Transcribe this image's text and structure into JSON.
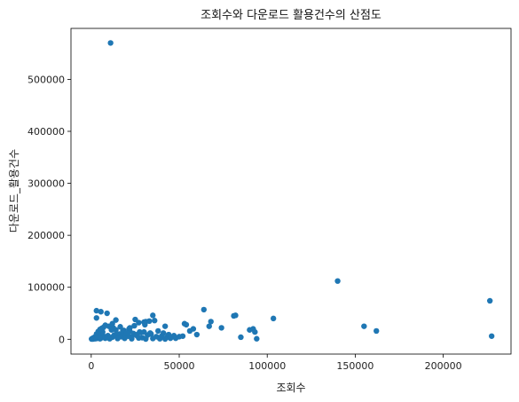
{
  "chart_data": {
    "type": "scatter",
    "title": "조회수와 다운로드 활용건수의 산점도",
    "xlabel": "조회수",
    "ylabel": "다운로드_활용건수",
    "xlim": [
      -11500,
      238500
    ],
    "ylim": [
      -28500,
      598000
    ],
    "xticks": [
      0,
      50000,
      100000,
      150000,
      200000
    ],
    "yticks": [
      0,
      100000,
      200000,
      300000,
      400000,
      500000
    ],
    "grid": false,
    "legend": "none",
    "marker_color": "#1f77b4",
    "series": [
      {
        "x": [
          11000,
          140000,
          226500,
          227500,
          155000,
          162000,
          103500,
          82000,
          81000,
          64000,
          67000,
          68000,
          74000,
          90000,
          92000,
          93000,
          94000,
          85000,
          3000,
          5500,
          9000,
          3000,
          35000,
          14000,
          36000,
          25000,
          27000,
          30000,
          31000,
          33000,
          42000,
          52000,
          53000,
          54000,
          56000,
          58000,
          60000,
          500,
          1000,
          1500,
          2000,
          2500,
          4000,
          6000,
          7000,
          8000,
          9500,
          10500,
          12000,
          13000,
          15000,
          16000,
          17000,
          18000,
          19000,
          20000,
          21000,
          22000,
          23000,
          24000,
          26000,
          28000,
          29000,
          32000,
          34000,
          37000,
          38000,
          39000,
          40000,
          41000,
          43000,
          44000,
          45000,
          47000,
          48000,
          50000,
          200,
          800,
          1200,
          1800,
          3500,
          4500,
          5000,
          6500,
          7500,
          11500,
          12500,
          14500,
          16500,
          18500,
          21500,
          24500,
          27500,
          30500,
          33500,
          3000,
          4000,
          5000,
          6000,
          7000,
          8000,
          10000,
          12000,
          14000,
          18000,
          20000,
          22000,
          26000,
          30000,
          1000,
          2000,
          3000,
          5000,
          8000,
          11000,
          15000,
          19000,
          23000,
          27000,
          31000,
          35000,
          39000,
          42000,
          45000
        ],
        "y": [
          570000,
          112000,
          74000,
          6000,
          25000,
          16000,
          40000,
          46000,
          45000,
          57000,
          25000,
          34000,
          22000,
          18000,
          20000,
          14000,
          1000,
          4000,
          55000,
          53000,
          50000,
          41000,
          46000,
          37000,
          36000,
          38000,
          32000,
          33000,
          34000,
          35000,
          25000,
          6000,
          30000,
          28000,
          16000,
          20000,
          9000,
          1000,
          2000,
          3000,
          4000,
          1500,
          5000,
          3000,
          6000,
          2000,
          7000,
          1000,
          4000,
          8000,
          3000,
          10000,
          5000,
          12000,
          2000,
          9000,
          6000,
          15000,
          4000,
          11000,
          7000,
          13000,
          3000,
          8000,
          10000,
          5000,
          16000,
          2000,
          6000,
          12000,
          4000,
          9000,
          3000,
          7000,
          2000,
          5000,
          500,
          1000,
          2500,
          3500,
          6500,
          8500,
          1000,
          14000,
          4500,
          18000,
          22000,
          8000,
          24000,
          17000,
          20000,
          26000,
          14000,
          28000,
          12000,
          10000,
          15000,
          19000,
          21000,
          23000,
          27000,
          25000,
          30000,
          18000,
          16000,
          12000,
          22000,
          9000,
          14000,
          500,
          1000,
          1500,
          2000,
          2500,
          3000,
          1500,
          2000,
          1000,
          2500,
          500,
          1500,
          1000,
          500,
          2000
        ]
      }
    ]
  }
}
